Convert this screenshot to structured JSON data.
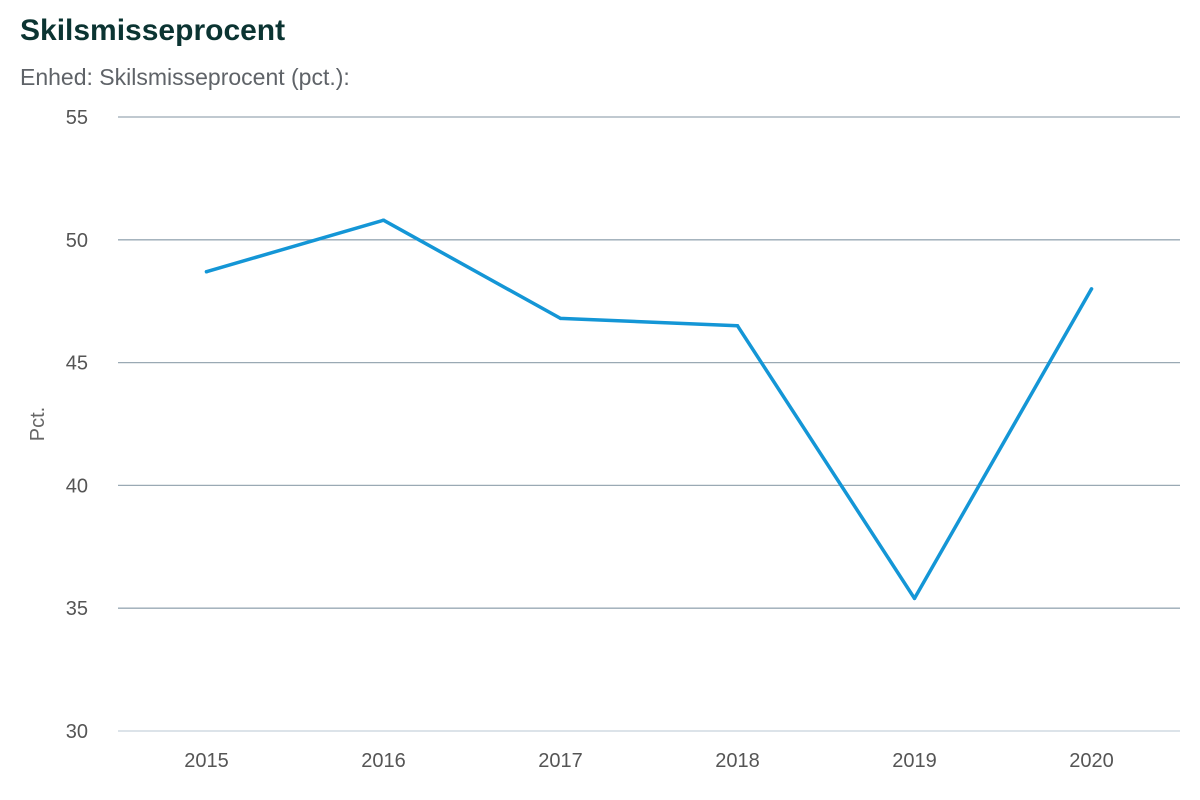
{
  "chart_data": {
    "type": "line",
    "title": "Skilsmisseprocent",
    "subtitle": "Enhed: Skilsmisseprocent (pct.):",
    "ylabel": "Pct.",
    "xlabel": "",
    "categories": [
      "2015",
      "2016",
      "2017",
      "2018",
      "2019",
      "2020"
    ],
    "series": [
      {
        "values": [
          48.7,
          50.8,
          46.8,
          46.5,
          35.4,
          48.0
        ],
        "color": "#1496d6"
      }
    ],
    "ylim": [
      30,
      55
    ],
    "yticks": [
      30,
      35,
      40,
      45,
      50,
      55
    ],
    "grid": true,
    "legend": "none",
    "colors": {
      "title": "#0b3432",
      "subtitle": "#5f6368",
      "grid": "#9aa9b4",
      "baseline": "#c8d2dc",
      "tick_text": "#555555"
    }
  }
}
